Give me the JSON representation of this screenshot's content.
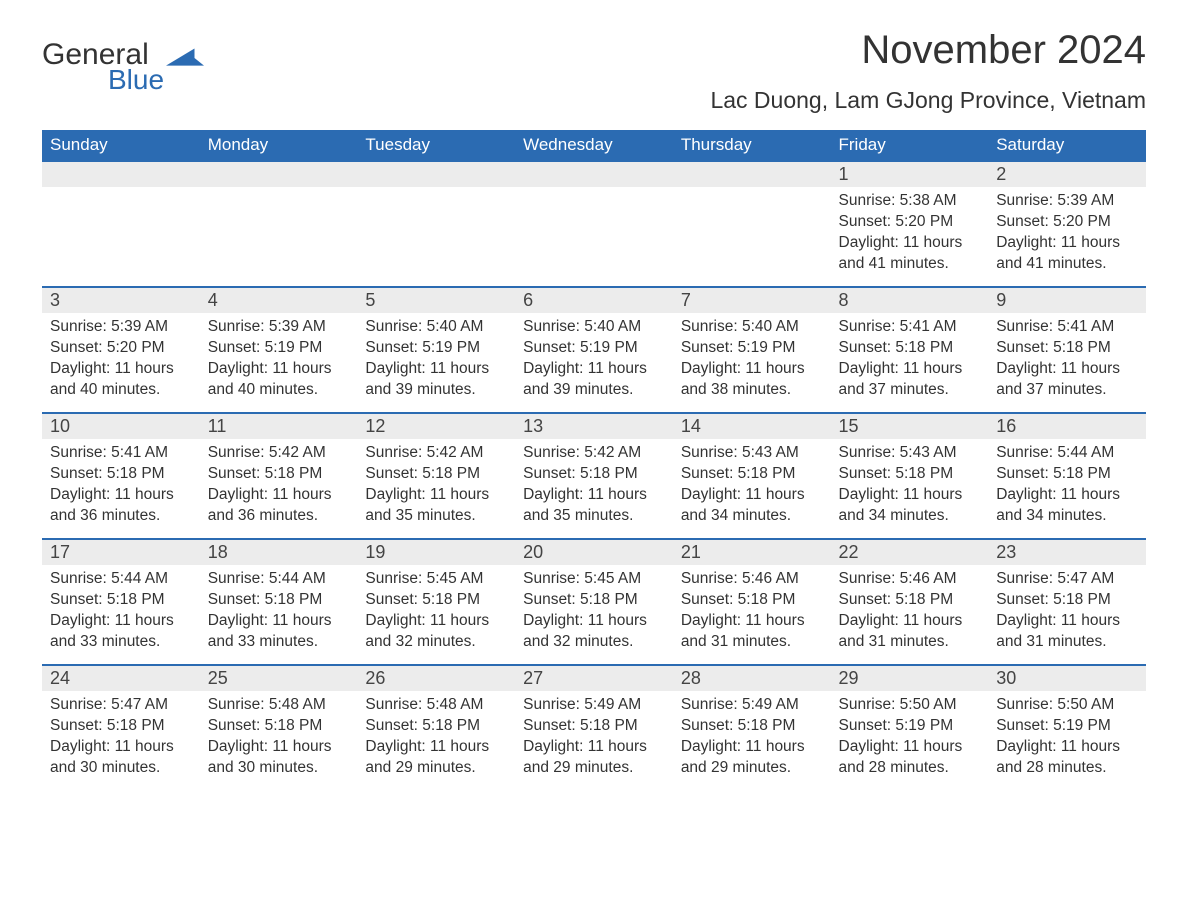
{
  "branding": {
    "logo_general": "General",
    "logo_blue": "Blue",
    "logo_color": "#2b6bb2"
  },
  "header": {
    "title": "November 2024",
    "location": "Lac Duong, Lam GJong Province, Vietnam"
  },
  "calendar": {
    "header_bg": "#2b6bb2",
    "header_fg": "#ffffff",
    "daynum_bg": "#ececec",
    "rule_color": "#2b6bb2",
    "text_color": "#333333",
    "day_names": [
      "Sunday",
      "Monday",
      "Tuesday",
      "Wednesday",
      "Thursday",
      "Friday",
      "Saturday"
    ],
    "weeks": [
      [
        null,
        null,
        null,
        null,
        null,
        {
          "n": "1",
          "sunrise": "5:38 AM",
          "sunset": "5:20 PM",
          "daylight": "11 hours and 41 minutes."
        },
        {
          "n": "2",
          "sunrise": "5:39 AM",
          "sunset": "5:20 PM",
          "daylight": "11 hours and 41 minutes."
        }
      ],
      [
        {
          "n": "3",
          "sunrise": "5:39 AM",
          "sunset": "5:20 PM",
          "daylight": "11 hours and 40 minutes."
        },
        {
          "n": "4",
          "sunrise": "5:39 AM",
          "sunset": "5:19 PM",
          "daylight": "11 hours and 40 minutes."
        },
        {
          "n": "5",
          "sunrise": "5:40 AM",
          "sunset": "5:19 PM",
          "daylight": "11 hours and 39 minutes."
        },
        {
          "n": "6",
          "sunrise": "5:40 AM",
          "sunset": "5:19 PM",
          "daylight": "11 hours and 39 minutes."
        },
        {
          "n": "7",
          "sunrise": "5:40 AM",
          "sunset": "5:19 PM",
          "daylight": "11 hours and 38 minutes."
        },
        {
          "n": "8",
          "sunrise": "5:41 AM",
          "sunset": "5:18 PM",
          "daylight": "11 hours and 37 minutes."
        },
        {
          "n": "9",
          "sunrise": "5:41 AM",
          "sunset": "5:18 PM",
          "daylight": "11 hours and 37 minutes."
        }
      ],
      [
        {
          "n": "10",
          "sunrise": "5:41 AM",
          "sunset": "5:18 PM",
          "daylight": "11 hours and 36 minutes."
        },
        {
          "n": "11",
          "sunrise": "5:42 AM",
          "sunset": "5:18 PM",
          "daylight": "11 hours and 36 minutes."
        },
        {
          "n": "12",
          "sunrise": "5:42 AM",
          "sunset": "5:18 PM",
          "daylight": "11 hours and 35 minutes."
        },
        {
          "n": "13",
          "sunrise": "5:42 AM",
          "sunset": "5:18 PM",
          "daylight": "11 hours and 35 minutes."
        },
        {
          "n": "14",
          "sunrise": "5:43 AM",
          "sunset": "5:18 PM",
          "daylight": "11 hours and 34 minutes."
        },
        {
          "n": "15",
          "sunrise": "5:43 AM",
          "sunset": "5:18 PM",
          "daylight": "11 hours and 34 minutes."
        },
        {
          "n": "16",
          "sunrise": "5:44 AM",
          "sunset": "5:18 PM",
          "daylight": "11 hours and 34 minutes."
        }
      ],
      [
        {
          "n": "17",
          "sunrise": "5:44 AM",
          "sunset": "5:18 PM",
          "daylight": "11 hours and 33 minutes."
        },
        {
          "n": "18",
          "sunrise": "5:44 AM",
          "sunset": "5:18 PM",
          "daylight": "11 hours and 33 minutes."
        },
        {
          "n": "19",
          "sunrise": "5:45 AM",
          "sunset": "5:18 PM",
          "daylight": "11 hours and 32 minutes."
        },
        {
          "n": "20",
          "sunrise": "5:45 AM",
          "sunset": "5:18 PM",
          "daylight": "11 hours and 32 minutes."
        },
        {
          "n": "21",
          "sunrise": "5:46 AM",
          "sunset": "5:18 PM",
          "daylight": "11 hours and 31 minutes."
        },
        {
          "n": "22",
          "sunrise": "5:46 AM",
          "sunset": "5:18 PM",
          "daylight": "11 hours and 31 minutes."
        },
        {
          "n": "23",
          "sunrise": "5:47 AM",
          "sunset": "5:18 PM",
          "daylight": "11 hours and 31 minutes."
        }
      ],
      [
        {
          "n": "24",
          "sunrise": "5:47 AM",
          "sunset": "5:18 PM",
          "daylight": "11 hours and 30 minutes."
        },
        {
          "n": "25",
          "sunrise": "5:48 AM",
          "sunset": "5:18 PM",
          "daylight": "11 hours and 30 minutes."
        },
        {
          "n": "26",
          "sunrise": "5:48 AM",
          "sunset": "5:18 PM",
          "daylight": "11 hours and 29 minutes."
        },
        {
          "n": "27",
          "sunrise": "5:49 AM",
          "sunset": "5:18 PM",
          "daylight": "11 hours and 29 minutes."
        },
        {
          "n": "28",
          "sunrise": "5:49 AM",
          "sunset": "5:18 PM",
          "daylight": "11 hours and 29 minutes."
        },
        {
          "n": "29",
          "sunrise": "5:50 AM",
          "sunset": "5:19 PM",
          "daylight": "11 hours and 28 minutes."
        },
        {
          "n": "30",
          "sunrise": "5:50 AM",
          "sunset": "5:19 PM",
          "daylight": "11 hours and 28 minutes."
        }
      ]
    ],
    "labels": {
      "sunrise": "Sunrise:",
      "sunset": "Sunset:",
      "daylight": "Daylight:"
    }
  }
}
